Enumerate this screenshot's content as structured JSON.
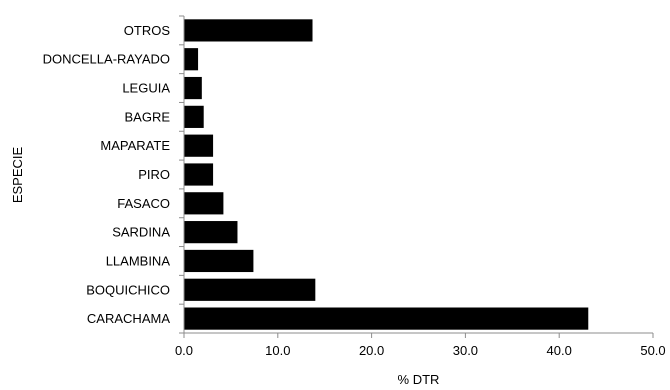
{
  "chart_data": {
    "type": "bar",
    "orientation": "horizontal",
    "categories": [
      "OTROS",
      "DONCELLA-RAYADO",
      "LEGUIA",
      "BAGRE",
      "MAPARATE",
      "PIRO",
      "FASACO",
      "SARDINA",
      "LLAMBINA",
      "BOQUICHICO",
      "CARACHAMA"
    ],
    "values": [
      13.7,
      1.5,
      1.9,
      2.1,
      3.1,
      3.1,
      4.2,
      5.7,
      7.4,
      14.0,
      43.1
    ],
    "xlabel": "% DTR",
    "ylabel": "ESPECIE",
    "xlim": [
      0,
      50
    ],
    "xticks": [
      "0.0",
      "10.0",
      "20.0",
      "30.0",
      "40.0",
      "50.0"
    ],
    "grid": false,
    "bar_color": "#000000"
  }
}
